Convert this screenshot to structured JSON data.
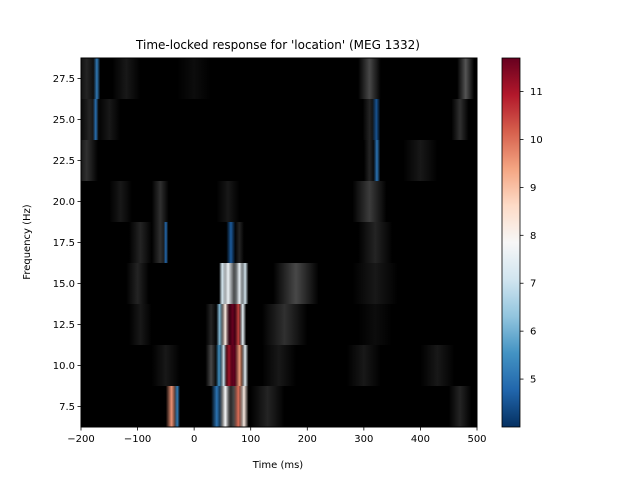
{
  "chart_data": {
    "type": "heatmap",
    "title": "Time-locked response for 'location' (MEG 1332)",
    "xlabel": "Time (ms)",
    "ylabel": "Frequency (Hz)",
    "xlim": [
      -200,
      500
    ],
    "ylim": [
      6.25,
      28.75
    ],
    "x_ticks": [
      -200,
      -100,
      0,
      100,
      200,
      300,
      400,
      500
    ],
    "x_tick_labels": [
      "−200",
      "−100",
      "0",
      "100",
      "200",
      "300",
      "400",
      "500"
    ],
    "y_ticks": [
      7.5,
      10.0,
      12.5,
      15.0,
      17.5,
      20.0,
      22.5,
      25.0,
      27.5
    ],
    "y_tick_labels": [
      "7.5",
      "10.0",
      "12.5",
      "15.0",
      "17.5",
      "20.0",
      "22.5",
      "25.0",
      "27.5"
    ],
    "frequencies": [
      7.5,
      10.0,
      12.5,
      15.0,
      17.5,
      20.0,
      22.5,
      25.0,
      27.5
    ],
    "colorbar": {
      "colormap": "RdBu_r",
      "range": [
        4.0,
        11.7
      ],
      "ticks": [
        5,
        6,
        7,
        8,
        9,
        10,
        11
      ],
      "tick_labels": [
        "5",
        "6",
        "7",
        "8",
        "9",
        "10",
        "11"
      ]
    },
    "background_colormap": "gray",
    "rows": [
      {
        "freq": 7.5,
        "features": [
          {
            "t": -40,
            "w": 10,
            "v": 9.6
          },
          {
            "t": -30,
            "w": 5,
            "v": 5.2
          },
          {
            "t": 40,
            "w": 10,
            "v": 5.0
          },
          {
            "t": 55,
            "w": 10,
            "v": 7.8
          },
          {
            "t": 70,
            "w": 12,
            "v": 9.2
          },
          {
            "t": 78,
            "w": 8,
            "v": 10.0
          },
          {
            "t": 88,
            "w": 8,
            "v": 8.2
          },
          {
            "t": 130,
            "w": 30,
            "v": 8.9
          },
          {
            "t": 470,
            "w": 20,
            "v": 8.9
          }
        ]
      },
      {
        "freq": 10.0,
        "features": [
          {
            "t": -50,
            "w": 25,
            "v": 8.8
          },
          {
            "t": 30,
            "w": 10,
            "v": 9.2
          },
          {
            "t": 44,
            "w": 6,
            "v": 5.5
          },
          {
            "t": 52,
            "w": 6,
            "v": 7.0
          },
          {
            "t": 62,
            "w": 8,
            "v": 11.0
          },
          {
            "t": 70,
            "w": 10,
            "v": 11.7
          },
          {
            "t": 80,
            "w": 8,
            "v": 9.5
          },
          {
            "t": 90,
            "w": 6,
            "v": 7.5
          },
          {
            "t": 150,
            "w": 30,
            "v": 8.8
          },
          {
            "t": 300,
            "w": 30,
            "v": 8.8
          },
          {
            "t": 430,
            "w": 30,
            "v": 8.8
          }
        ]
      },
      {
        "freq": 12.5,
        "features": [
          {
            "t": -95,
            "w": 20,
            "v": 8.8
          },
          {
            "t": 30,
            "w": 10,
            "v": 8.9
          },
          {
            "t": 45,
            "w": 6,
            "v": 6.2
          },
          {
            "t": 55,
            "w": 8,
            "v": 8.2
          },
          {
            "t": 68,
            "w": 12,
            "v": 11.7
          },
          {
            "t": 78,
            "w": 6,
            "v": 10.5
          },
          {
            "t": 86,
            "w": 6,
            "v": 7.5
          },
          {
            "t": 160,
            "w": 40,
            "v": 9.0
          },
          {
            "t": 320,
            "w": 30,
            "v": 8.7
          }
        ]
      },
      {
        "freq": 15.0,
        "features": [
          {
            "t": -100,
            "w": 20,
            "v": 8.9
          },
          {
            "t": 50,
            "w": 6,
            "v": 7.0
          },
          {
            "t": 60,
            "w": 15,
            "v": 7.6
          },
          {
            "t": 80,
            "w": 10,
            "v": 7.5
          },
          {
            "t": 90,
            "w": 6,
            "v": 7.2
          },
          {
            "t": 180,
            "w": 40,
            "v": 9.2
          },
          {
            "t": 320,
            "w": 40,
            "v": 8.8
          }
        ]
      },
      {
        "freq": 17.5,
        "features": [
          {
            "t": -95,
            "w": 20,
            "v": 8.9
          },
          {
            "t": -60,
            "w": 15,
            "v": 9.0
          },
          {
            "t": -50,
            "w": 4,
            "v": 4.8
          },
          {
            "t": 65,
            "w": 8,
            "v": 4.6
          },
          {
            "t": 80,
            "w": 8,
            "v": 8.9
          },
          {
            "t": 320,
            "w": 30,
            "v": 8.9
          }
        ]
      },
      {
        "freq": 20.0,
        "features": [
          {
            "t": -130,
            "w": 20,
            "v": 8.8
          },
          {
            "t": -60,
            "w": 15,
            "v": 9.0
          },
          {
            "t": 60,
            "w": 20,
            "v": 8.8
          },
          {
            "t": 310,
            "w": 30,
            "v": 9.1
          }
        ]
      },
      {
        "freq": 22.5,
        "features": [
          {
            "t": -190,
            "w": 20,
            "v": 9.0
          },
          {
            "t": 310,
            "w": 10,
            "v": 8.9
          },
          {
            "t": 323,
            "w": 6,
            "v": 5.0
          },
          {
            "t": 400,
            "w": 30,
            "v": 8.8
          }
        ]
      },
      {
        "freq": 25.0,
        "features": [
          {
            "t": -185,
            "w": 20,
            "v": 8.9
          },
          {
            "t": -174,
            "w": 5,
            "v": 4.9
          },
          {
            "t": -150,
            "w": 20,
            "v": 8.8
          },
          {
            "t": 310,
            "w": 12,
            "v": 8.9
          },
          {
            "t": 322,
            "w": 7,
            "v": 4.5
          },
          {
            "t": 470,
            "w": 15,
            "v": 9.0
          }
        ]
      },
      {
        "freq": 27.5,
        "features": [
          {
            "t": -190,
            "w": 20,
            "v": 8.9
          },
          {
            "t": -172,
            "w": 6,
            "v": 5.1
          },
          {
            "t": -120,
            "w": 25,
            "v": 8.8
          },
          {
            "t": 0,
            "w": 30,
            "v": 8.7
          },
          {
            "t": 310,
            "w": 20,
            "v": 9.2
          },
          {
            "t": 480,
            "w": 15,
            "v": 9.3
          }
        ]
      }
    ]
  }
}
